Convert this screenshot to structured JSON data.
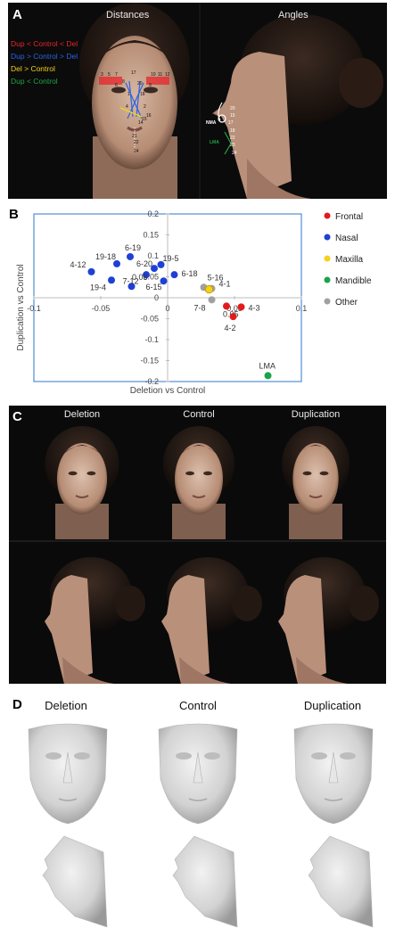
{
  "panel_a": {
    "letter": "A",
    "title_distances": "Distances",
    "title_angles": "Angles",
    "legend": [
      {
        "text": "Dup < Control < Del",
        "color": "#e8242b"
      },
      {
        "text": "Dup > Control > Del",
        "color": "#2a62e6"
      },
      {
        "text": "Del  > Control",
        "color": "#f2d21c"
      },
      {
        "text": "Dup < Control",
        "color": "#1fa447"
      }
    ],
    "landmark_labels": [
      "3",
      "5",
      "7",
      "17",
      "8",
      "10",
      "11",
      "12",
      "6",
      "20",
      "9",
      "1",
      "18",
      "4",
      "2",
      "16",
      "15",
      "14",
      "21",
      "22",
      "24"
    ],
    "angle_labels": {
      "nma": "NMA",
      "lma": "LMA"
    },
    "profile_numbers": [
      "20",
      "15",
      "17",
      "18",
      "22",
      "23",
      "24"
    ]
  },
  "panel_b": {
    "letter": "B"
  },
  "panel_c": {
    "letter": "C",
    "titles": [
      "Deletion",
      "Control",
      "Duplication"
    ]
  },
  "panel_d": {
    "letter": "D",
    "titles": [
      "Deletion",
      "Control",
      "Duplication"
    ]
  },
  "chart_data": {
    "type": "scatter",
    "xlabel": "Deletion vs Control",
    "ylabel": "Duplication vs Control",
    "xlim": [
      -0.1,
      0.1
    ],
    "ylim": [
      -0.2,
      0.2
    ],
    "x_ticks": [
      "-0.1",
      "-0.05",
      "0",
      "0.05",
      "0.1"
    ],
    "y_ticks": [
      "0.2",
      "0.15",
      "0.1",
      "0.05",
      "0",
      "-0.05",
      "-0.1",
      "-0.15",
      "-0.2"
    ],
    "legend": [
      {
        "name": "Frontal",
        "color": "#e31a1c"
      },
      {
        "name": "Nasal",
        "color": "#1f3fd6"
      },
      {
        "name": "Maxilla",
        "color": "#f5d21a"
      },
      {
        "name": "Mandible",
        "color": "#1aa34a"
      },
      {
        "name": "Other",
        "color": "#a0a0a0"
      }
    ],
    "points": [
      {
        "label": "4-12",
        "x": -0.057,
        "y": 0.062,
        "group": "Nasal"
      },
      {
        "label": "19-18",
        "x": -0.038,
        "y": 0.081,
        "group": "Nasal"
      },
      {
        "label": "6-19",
        "x": -0.028,
        "y": 0.098,
        "group": "Nasal"
      },
      {
        "label": "19-4",
        "x": -0.042,
        "y": 0.042,
        "group": "Nasal"
      },
      {
        "label": "7-12",
        "x": -0.027,
        "y": 0.027,
        "group": "Nasal"
      },
      {
        "label": "6-20",
        "x": -0.01,
        "y": 0.07,
        "group": "Nasal"
      },
      {
        "label": "19-5",
        "x": -0.005,
        "y": 0.079,
        "group": "Nasal"
      },
      {
        "label": "0.05",
        "x": -0.016,
        "y": 0.055,
        "group": "Nasal"
      },
      {
        "label": "6-15",
        "x": -0.003,
        "y": 0.04,
        "group": "Nasal"
      },
      {
        "label": "6-18",
        "x": 0.005,
        "y": 0.055,
        "group": "Nasal"
      },
      {
        "label": "5-16",
        "x": 0.027,
        "y": 0.025,
        "group": "Other"
      },
      {
        "label": "4-1",
        "x": 0.033,
        "y": 0.022,
        "group": "Other"
      },
      {
        "label": "7-8",
        "x": 0.033,
        "y": -0.005,
        "group": "Other"
      },
      {
        "label": "",
        "x": 0.031,
        "y": 0.02,
        "group": "Maxilla"
      },
      {
        "label": "0.05",
        "x": 0.044,
        "y": -0.02,
        "group": "Frontal"
      },
      {
        "label": "4-3",
        "x": 0.055,
        "y": -0.022,
        "group": "Frontal"
      },
      {
        "label": "4-2",
        "x": 0.049,
        "y": -0.045,
        "group": "Frontal"
      },
      {
        "label": "LMA",
        "x": 0.075,
        "y": -0.186,
        "group": "Mandible"
      }
    ]
  }
}
